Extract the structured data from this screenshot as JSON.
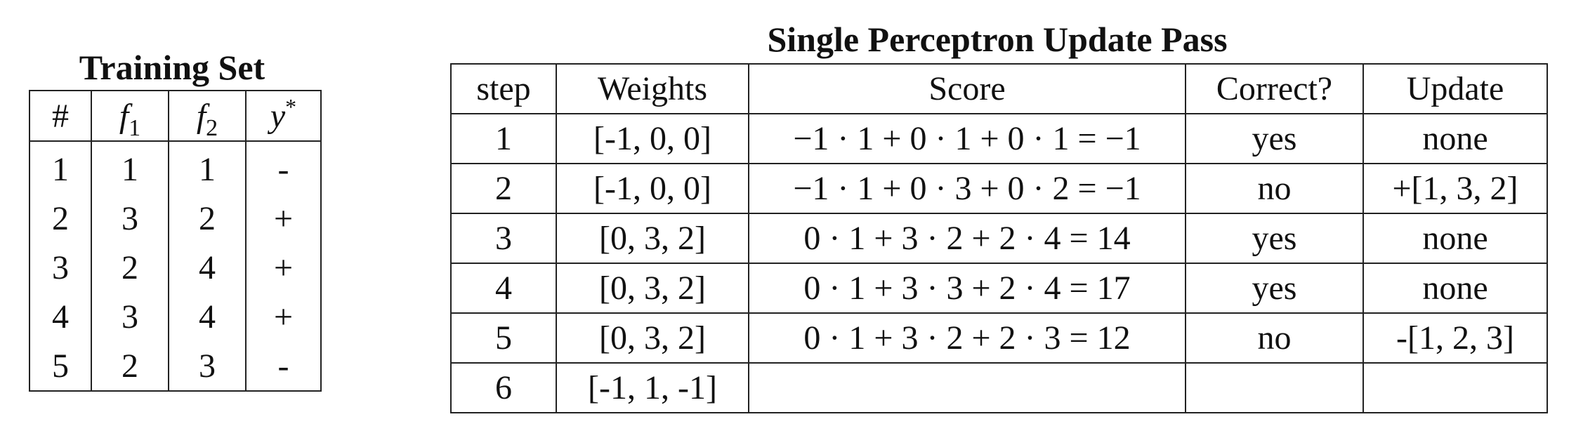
{
  "training": {
    "title": "Training Set",
    "headers": {
      "index": "#",
      "f1_base": "f",
      "f1_sub": "1",
      "f2_base": "f",
      "f2_sub": "2",
      "y_base": "y",
      "y_sup": "*"
    },
    "rows": [
      {
        "n": "1",
        "f1": "1",
        "f2": "1",
        "y": "-"
      },
      {
        "n": "2",
        "f1": "3",
        "f2": "2",
        "y": "+"
      },
      {
        "n": "3",
        "f1": "2",
        "f2": "4",
        "y": "+"
      },
      {
        "n": "4",
        "f1": "3",
        "f2": "4",
        "y": "+"
      },
      {
        "n": "5",
        "f1": "2",
        "f2": "3",
        "y": "-"
      }
    ]
  },
  "pass": {
    "title": "Single Perceptron Update Pass",
    "headers": {
      "step": "step",
      "weights": "Weights",
      "score": "Score",
      "correct": "Correct?",
      "update": "Update"
    },
    "rows": [
      {
        "step": "1",
        "weights": "[-1, 0, 0]",
        "score": "−1 · 1 + 0 · 1 + 0 · 1 = −1",
        "correct": "yes",
        "update": "none"
      },
      {
        "step": "2",
        "weights": "[-1, 0, 0]",
        "score": "−1 · 1 + 0 · 3 + 0 · 2 = −1",
        "correct": "no",
        "update": "+[1, 3, 2]"
      },
      {
        "step": "3",
        "weights": "[0, 3, 2]",
        "score": "0 · 1 + 3 · 2 + 2 · 4 = 14",
        "correct": "yes",
        "update": "none"
      },
      {
        "step": "4",
        "weights": "[0, 3, 2]",
        "score": "0 · 1 + 3 · 3 + 2 · 4 = 17",
        "correct": "yes",
        "update": "none"
      },
      {
        "step": "5",
        "weights": "[0, 3, 2]",
        "score": "0 · 1 + 3 · 2 + 2 · 3 = 12",
        "correct": "no",
        "update": "-[1, 2, 3]"
      },
      {
        "step": "6",
        "weights": "[-1, 1, -1]",
        "score": "",
        "correct": "",
        "update": ""
      }
    ]
  }
}
